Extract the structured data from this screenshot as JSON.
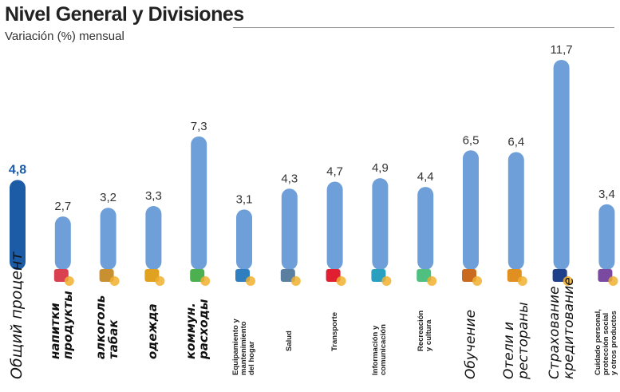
{
  "title": "Nivel General y Divisiones",
  "subtitle": "Variación (%) mensual",
  "chart_data": {
    "type": "bar",
    "title": "Nivel General y Divisiones",
    "subtitle": "Variación (%) mensual",
    "categories": [
      "Общий процент",
      "напитки\nпродукты",
      "алкоголь\nтабак",
      "одежда",
      "коммун.\nрасходы",
      "Equipamiento y\nmantenimiento\ndel hogar",
      "Salud",
      "Transporte",
      "Información y\ncomunicación",
      "Recreación\ny cultura",
      "Обучение",
      "Отели и\nрестораны",
      "Страхование\nкредитование",
      "Cuidado personal,\nprotección social\ny otros productos"
    ],
    "values": [
      4.8,
      2.7,
      3.2,
      3.3,
      7.3,
      3.1,
      4.3,
      4.7,
      4.9,
      4.4,
      6.5,
      6.4,
      11.7,
      3.4
    ],
    "value_labels": [
      "4,8",
      "2,7",
      "3,2",
      "3,3",
      "7,3",
      "3,1",
      "4,3",
      "4,7",
      "4,9",
      "4,4",
      "6,5",
      "6,4",
      "11,7",
      "3,4"
    ],
    "label_styles": [
      "ru-b",
      "ru-b",
      "ru-b",
      "ru-b",
      "ru-b",
      "es",
      "es",
      "es",
      "es",
      "es",
      "ru",
      "ru",
      "ru",
      "es"
    ],
    "icons": [
      "none",
      "food-drink-icon",
      "alcohol-tobacco-icon",
      "clothing-icon",
      "house-utilities-icon",
      "washing-machine-icon",
      "doctor-icon",
      "car-plane-icon",
      "computer-icon",
      "theater-masks-icon",
      "school-icon",
      "restaurant-icon",
      "bank-icon",
      "personal-care-icon"
    ],
    "icon_colors": [
      "#fff",
      "#d94050",
      "#c89030",
      "#e0a020",
      "#4caf50",
      "#2f7fc0",
      "#5a7fa0",
      "#e02030",
      "#2aa0c0",
      "#50c080",
      "#c86a20",
      "#e09020",
      "#1e3f8a",
      "#7a4aa0"
    ],
    "colors": {
      "highlight": "#1c5ba6",
      "bar": "#6f9fd8",
      "highlight_label": "#1c5ba6",
      "label": "#333333"
    },
    "ylim": [
      0,
      12
    ],
    "grid": false,
    "legend": "none"
  }
}
